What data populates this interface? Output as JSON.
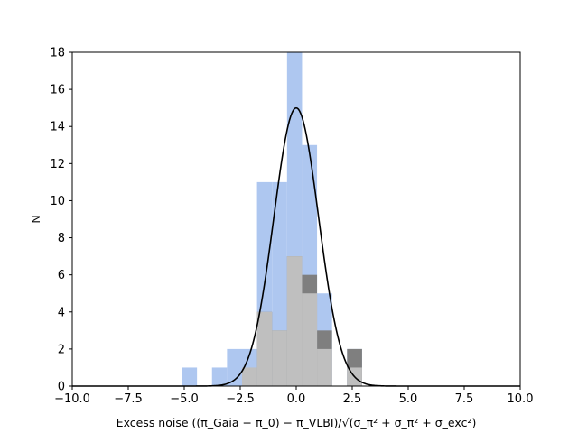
{
  "chart_data": {
    "type": "bar",
    "xlabel_main": "Excess noise",
    "xlabel_formula": "((π_Gaia − π_0) − π_VLBI)/√(σ_π² + σ_π² + σ_exc²)",
    "ylabel": "N",
    "xlim": [
      -10,
      10
    ],
    "ylim": [
      0,
      18
    ],
    "xticks": [
      "−10.0",
      "−7.5",
      "−5.0",
      "−2.5",
      "0.0",
      "2.5",
      "5.0",
      "7.5",
      "10.0"
    ],
    "xtick_values": [
      -10,
      -7.5,
      -5,
      -2.5,
      0,
      2.5,
      5,
      7.5,
      10
    ],
    "yticks": [
      "0",
      "2",
      "4",
      "6",
      "8",
      "10",
      "12",
      "14",
      "16",
      "18"
    ],
    "ytick_values": [
      0,
      2,
      4,
      6,
      8,
      10,
      12,
      14,
      16,
      18
    ],
    "bin_edges": [
      -5.1,
      -4.43,
      -3.76,
      -3.09,
      -2.42,
      -1.75,
      -1.08,
      -0.41,
      0.26,
      0.93,
      1.6,
      2.27,
      2.94
    ],
    "series": [
      {
        "color": "#aec7f0",
        "values": [
          1,
          0,
          1,
          2,
          2,
          11,
          11,
          18,
          13,
          5,
          0,
          2
        ]
      },
      {
        "color": "#7f7f7f",
        "values": [
          0,
          0,
          0,
          0,
          0,
          4,
          3,
          7,
          6,
          3,
          0,
          2
        ]
      },
      {
        "color": "#bfbfbf",
        "values": [
          0,
          0,
          0,
          0,
          1,
          4,
          3,
          7,
          5,
          2,
          0,
          1
        ]
      }
    ],
    "gaussian_curve": {
      "color": "#000000",
      "amplitude": 15,
      "mean": 0,
      "sigma": 1
    }
  }
}
